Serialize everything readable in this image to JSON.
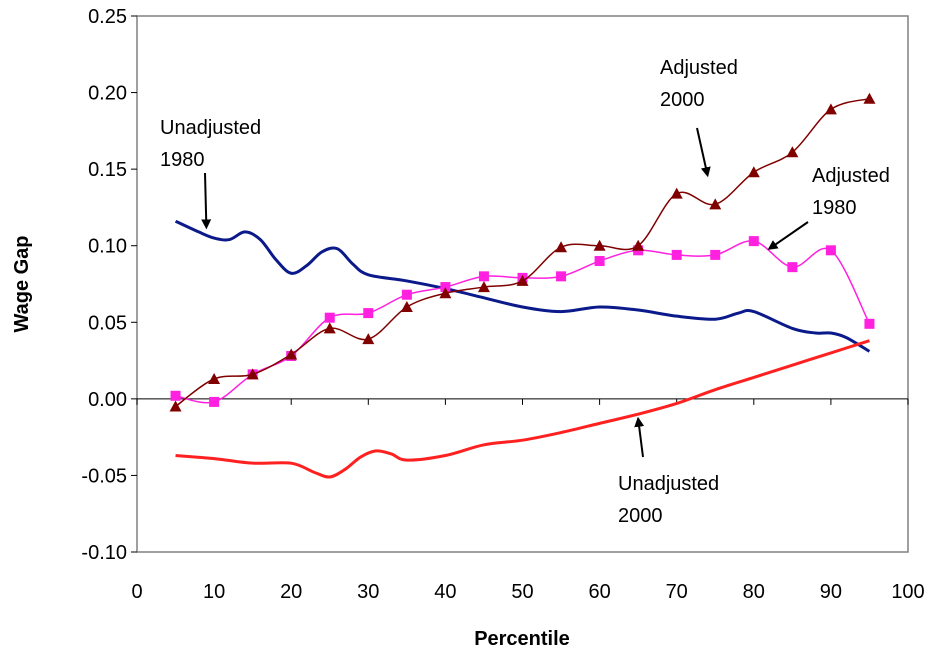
{
  "chart_data": {
    "type": "line",
    "title": "",
    "xlabel": "Percentile",
    "ylabel": "Wage Gap",
    "xlim": [
      0,
      100
    ],
    "ylim": [
      -0.1,
      0.25
    ],
    "x_ticks": [
      "0",
      "10",
      "20",
      "30",
      "40",
      "50",
      "60",
      "70",
      "80",
      "90",
      "100"
    ],
    "y_ticks": [
      "0.25",
      "0.20",
      "0.15",
      "0.10",
      "0.05",
      "0.00",
      "-0.05",
      "-0.10"
    ],
    "grid": false,
    "legend": "none",
    "series": [
      {
        "name": "Unadjusted 1980",
        "color": "#0b1a8a",
        "marker": "none",
        "x": [
          5,
          8,
          10,
          12,
          14,
          16,
          18,
          20,
          22,
          24,
          26,
          28,
          30,
          35,
          40,
          45,
          50,
          55,
          60,
          65,
          70,
          75,
          78,
          80,
          85,
          88,
          90,
          92,
          95
        ],
        "y": [
          0.116,
          0.109,
          0.105,
          0.104,
          0.109,
          0.104,
          0.091,
          0.082,
          0.087,
          0.096,
          0.098,
          0.088,
          0.081,
          0.077,
          0.072,
          0.066,
          0.06,
          0.057,
          0.06,
          0.058,
          0.054,
          0.052,
          0.056,
          0.057,
          0.046,
          0.043,
          0.043,
          0.04,
          0.031
        ]
      },
      {
        "name": "Unadjusted 2000",
        "color": "#ff2020",
        "marker": "none",
        "x": [
          5,
          10,
          15,
          20,
          23,
          25,
          27,
          29,
          31,
          33,
          35,
          40,
          45,
          50,
          55,
          60,
          65,
          70,
          75,
          80,
          85,
          90,
          95
        ],
        "y": [
          -0.037,
          -0.039,
          -0.042,
          -0.042,
          -0.048,
          -0.051,
          -0.046,
          -0.038,
          -0.034,
          -0.036,
          -0.04,
          -0.037,
          -0.03,
          -0.027,
          -0.022,
          -0.016,
          -0.01,
          -0.003,
          0.006,
          0.014,
          0.022,
          0.03,
          0.038
        ]
      },
      {
        "name": "Adjusted 1980",
        "color": "#ff20e0",
        "marker": "square",
        "x": [
          5,
          10,
          15,
          20,
          25,
          30,
          35,
          40,
          45,
          50,
          55,
          60,
          65,
          70,
          75,
          80,
          85,
          90,
          95
        ],
        "y": [
          0.002,
          -0.002,
          0.016,
          0.028,
          0.053,
          0.056,
          0.068,
          0.073,
          0.08,
          0.079,
          0.08,
          0.09,
          0.097,
          0.094,
          0.094,
          0.103,
          0.086,
          0.097,
          0.049
        ]
      },
      {
        "name": "Adjusted 2000",
        "color": "#800000",
        "marker": "triangle",
        "x": [
          5,
          10,
          15,
          20,
          25,
          30,
          35,
          40,
          45,
          50,
          55,
          60,
          65,
          70,
          75,
          80,
          85,
          90,
          95
        ],
        "y": [
          -0.005,
          0.013,
          0.016,
          0.029,
          0.046,
          0.039,
          0.06,
          0.069,
          0.073,
          0.077,
          0.099,
          0.1,
          0.1,
          0.134,
          0.127,
          0.148,
          0.161,
          0.189,
          0.196
        ]
      }
    ],
    "annotations": [
      {
        "lines": [
          "Unadjusted",
          "1980"
        ],
        "arrow_to": [
          9,
          0.112
        ]
      },
      {
        "lines": [
          "Adjusted",
          "2000"
        ],
        "arrow_to": [
          74,
          0.146
        ]
      },
      {
        "lines": [
          "Adjusted",
          "1980"
        ],
        "arrow_to": [
          82,
          0.098
        ]
      },
      {
        "lines": [
          "Unadjusted",
          "2000"
        ],
        "arrow_to": [
          65,
          -0.013
        ]
      }
    ]
  }
}
